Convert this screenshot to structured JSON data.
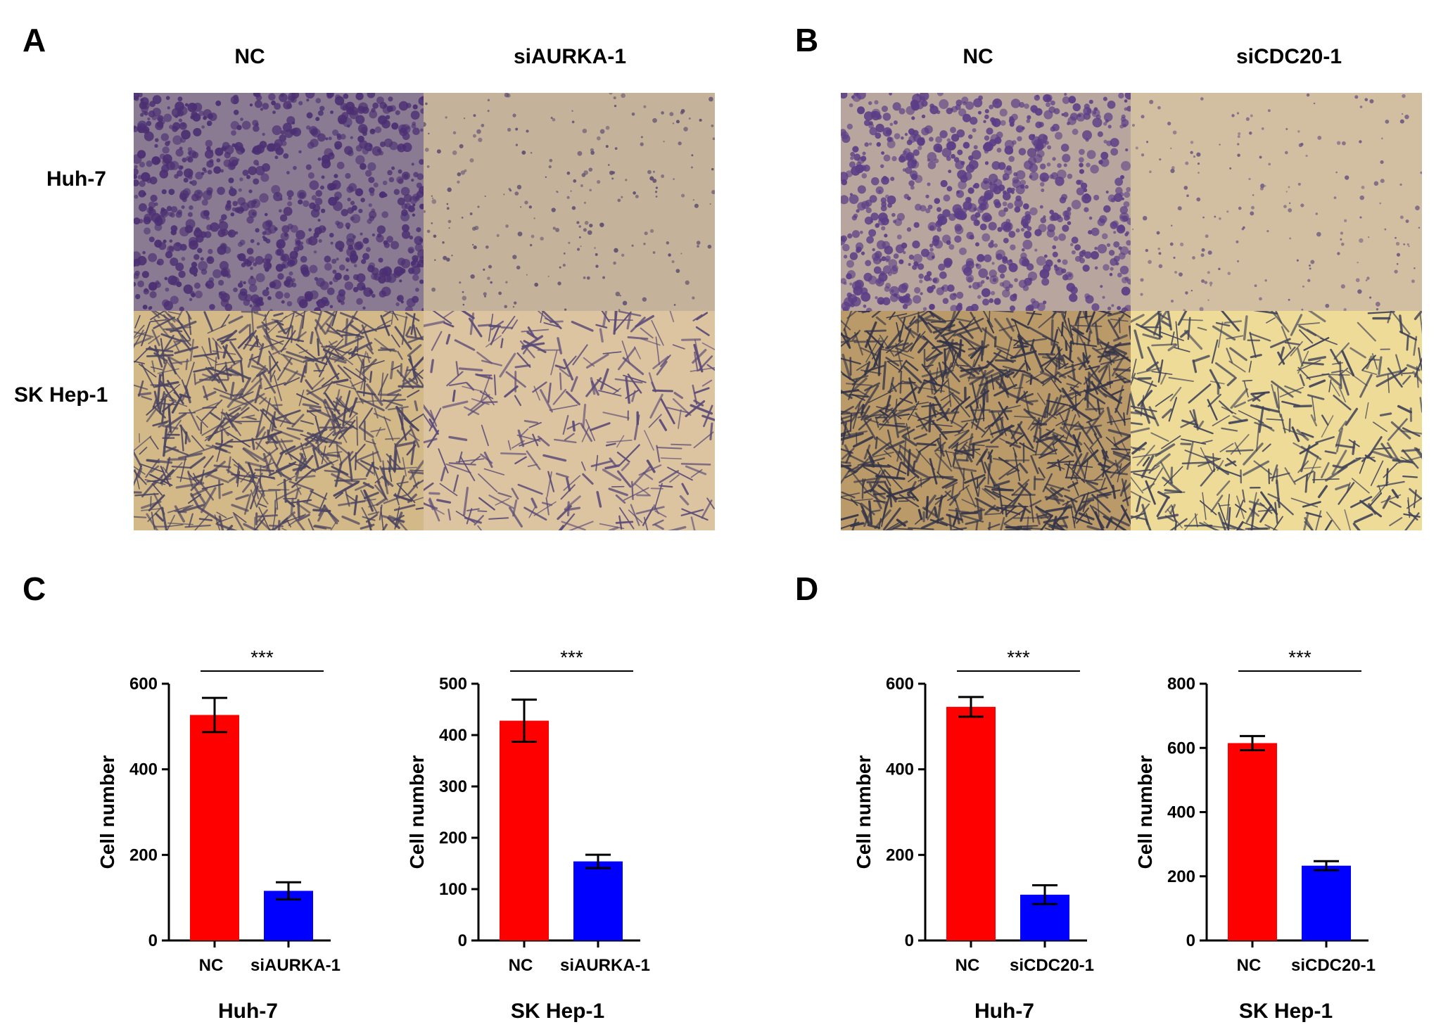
{
  "panels": {
    "A": {
      "letter": "A",
      "columns": [
        "NC",
        "siAURKA-1"
      ],
      "rows": [
        "Huh-7",
        "SK Hep-1"
      ]
    },
    "B": {
      "letter": "B",
      "columns": [
        "NC",
        "siCDC20-1"
      ]
    },
    "C": {
      "letter": "C"
    },
    "D": {
      "letter": "D"
    }
  },
  "images": [
    {
      "panel": "A",
      "row": "Huh-7",
      "condition": "NC",
      "bg": "#8a7a92",
      "cell": "#4b2f72",
      "density": 0.95,
      "shape": "cluster"
    },
    {
      "panel": "A",
      "row": "Huh-7",
      "condition": "siAURKA-1",
      "bg": "#c4b29a",
      "cell": "#5a4a6e",
      "density": 0.25,
      "shape": "dot"
    },
    {
      "panel": "A",
      "row": "SK Hep-1",
      "condition": "NC",
      "bg": "#d3b888",
      "cell": "#4a4460",
      "density": 0.85,
      "shape": "spindle"
    },
    {
      "panel": "A",
      "row": "SK Hep-1",
      "condition": "siAURKA-1",
      "bg": "#dcc4a0",
      "cell": "#5a4a78",
      "density": 0.35,
      "shape": "spindle"
    },
    {
      "panel": "B",
      "row": "Huh-7",
      "condition": "NC",
      "bg": "#b8a69e",
      "cell": "#5a3d86",
      "density": 0.9,
      "shape": "cluster"
    },
    {
      "panel": "B",
      "row": "Huh-7",
      "condition": "siCDC20-1",
      "bg": "#d2bfa2",
      "cell": "#6a5580",
      "density": 0.2,
      "shape": "dot"
    },
    {
      "panel": "B",
      "row": "SK Hep-1",
      "condition": "NC",
      "bg": "#b99a68",
      "cell": "#343448",
      "density": 0.95,
      "shape": "spindle"
    },
    {
      "panel": "B",
      "row": "SK Hep-1",
      "condition": "siCDC20-1",
      "bg": "#eedb98",
      "cell": "#3f4258",
      "density": 0.45,
      "shape": "spindle"
    }
  ],
  "chart_data": [
    {
      "type": "bar",
      "panel": "C",
      "xlabel": "Huh-7",
      "ylabel": "Cell number",
      "categories": [
        "NC",
        "siAURKA-1"
      ],
      "values": [
        527,
        116
      ],
      "errors": [
        40,
        20
      ],
      "colors": [
        "#ff0000",
        "#0000ff"
      ],
      "ylim": [
        0,
        600
      ],
      "yticks": [
        0,
        200,
        400,
        600
      ],
      "significance": "***"
    },
    {
      "type": "bar",
      "panel": "C",
      "xlabel": "SK Hep-1",
      "ylabel": "Cell number",
      "categories": [
        "NC",
        "siAURKA-1"
      ],
      "values": [
        428,
        154
      ],
      "errors": [
        41,
        13
      ],
      "colors": [
        "#ff0000",
        "#0000ff"
      ],
      "ylim": [
        0,
        500
      ],
      "yticks": [
        0,
        100,
        200,
        300,
        400,
        500
      ],
      "significance": "***"
    },
    {
      "type": "bar",
      "panel": "D",
      "xlabel": "Huh-7",
      "ylabel": "Cell number",
      "categories": [
        "NC",
        "siCDC20-1"
      ],
      "values": [
        546,
        107
      ],
      "errors": [
        23,
        22
      ],
      "colors": [
        "#ff0000",
        "#0000ff"
      ],
      "ylim": [
        0,
        600
      ],
      "yticks": [
        0,
        200,
        400,
        600
      ],
      "significance": "***"
    },
    {
      "type": "bar",
      "panel": "D",
      "xlabel": "SK Hep-1",
      "ylabel": "Cell number",
      "categories": [
        "NC",
        "siCDC20-1"
      ],
      "values": [
        615,
        233
      ],
      "errors": [
        22,
        14
      ],
      "colors": [
        "#ff0000",
        "#0000ff"
      ],
      "ylim": [
        0,
        800
      ],
      "yticks": [
        0,
        200,
        400,
        600,
        800
      ],
      "significance": "***"
    }
  ]
}
